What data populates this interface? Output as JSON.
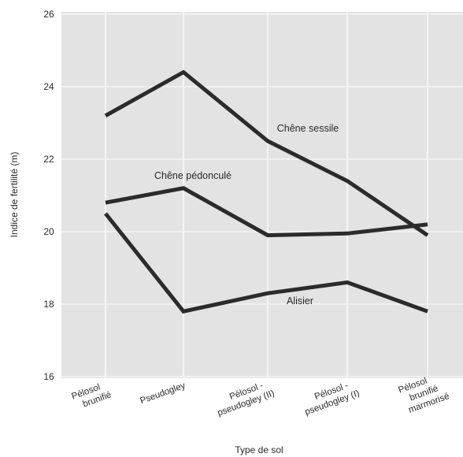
{
  "chart_data": {
    "type": "line",
    "title": "",
    "xlabel": "Type de sol",
    "ylabel": "Indice de fertilité (m)",
    "ylim": [
      16,
      26
    ],
    "yticks": [
      "16",
      "18",
      "20",
      "22",
      "24",
      "26"
    ],
    "grid": true,
    "categories": [
      [
        "Pélosol",
        "brunifié"
      ],
      [
        "Pseudogley"
      ],
      [
        "Pélosol -",
        "pseudogley (II)"
      ],
      [
        "Pélosol -",
        "pseudogley (I)"
      ],
      [
        "Pélosol",
        "brunifié",
        "marmorisé"
      ]
    ],
    "series": [
      {
        "name": "Chêne sessile",
        "values": [
          23.2,
          24.4,
          22.5,
          21.4,
          19.9
        ]
      },
      {
        "name": "Chêne pédonculé",
        "values": [
          20.8,
          21.2,
          19.9,
          19.95,
          20.2
        ]
      },
      {
        "name": "Alisier",
        "values": [
          20.5,
          17.8,
          18.3,
          18.6,
          17.8
        ]
      }
    ],
    "colors": {
      "background": "#e3e3e3",
      "grid": "#f4f4f4",
      "line": "#2b2b2b"
    }
  }
}
